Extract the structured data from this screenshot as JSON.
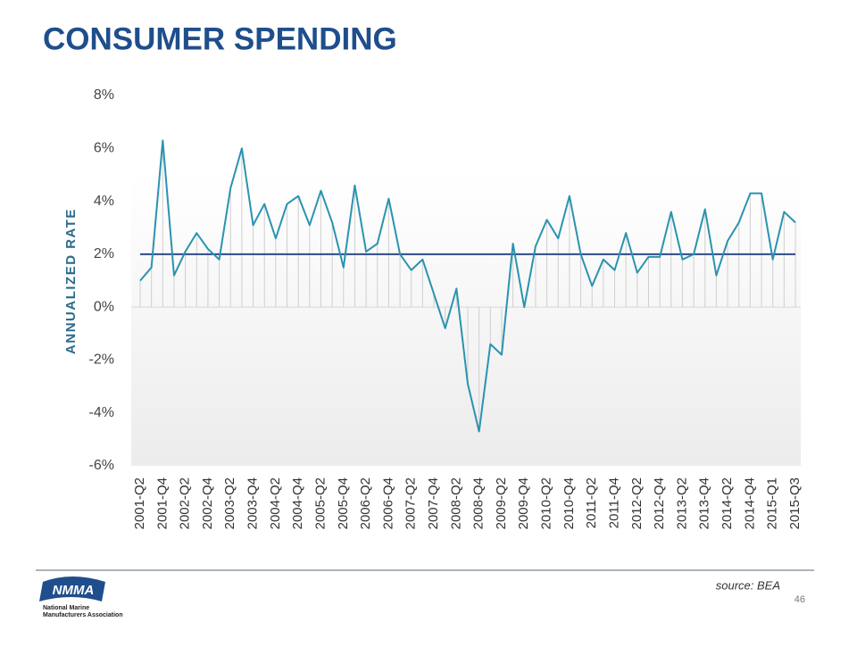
{
  "chart_data": {
    "type": "line",
    "title": "CONSUMER SPENDING",
    "y_label": "ANNUALIZED RATE",
    "source": "source: BEA",
    "page_number": "46",
    "logo": {
      "mark": "NMMA",
      "line1": "National Marine",
      "line2": "Manufacturers Association"
    },
    "categories": [
      "2001-Q2",
      null,
      "2001-Q4",
      null,
      "2002-Q2",
      null,
      "2002-Q4",
      null,
      "2003-Q2",
      null,
      "2003-Q4",
      null,
      "2004-Q2",
      null,
      "2004-Q4",
      null,
      "2005-Q2",
      null,
      "2005-Q4",
      null,
      "2006-Q2",
      null,
      "2006-Q4",
      null,
      "2007-Q2",
      null,
      "2007-Q4",
      null,
      "2008-Q2",
      null,
      "2008-Q4",
      null,
      "2009-Q2",
      null,
      "2009-Q4",
      null,
      "2010-Q2",
      null,
      "2010-Q4",
      null,
      "2011-Q2",
      null,
      "2011-Q4",
      null,
      "2012-Q2",
      null,
      "2012-Q4",
      null,
      "2013-Q2",
      null,
      "2013-Q4",
      null,
      "2014-Q2",
      null,
      "2014-Q4",
      null,
      "2015-Q1",
      null,
      "2015-Q3"
    ],
    "series": [
      {
        "color": "#2a93b0",
        "values": [
          1.0,
          1.5,
          6.3,
          1.2,
          2.1,
          2.8,
          2.2,
          1.8,
          4.5,
          6.0,
          3.1,
          3.9,
          2.6,
          3.9,
          4.2,
          3.1,
          4.4,
          3.2,
          1.5,
          4.6,
          2.1,
          2.4,
          4.1,
          2.0,
          1.4,
          1.8,
          0.5,
          -0.8,
          0.7,
          -2.9,
          -4.7,
          -1.4,
          -1.8,
          2.4,
          0.0,
          2.3,
          3.3,
          2.6,
          4.2,
          2.0,
          0.8,
          1.8,
          1.4,
          2.8,
          1.3,
          1.9,
          1.9,
          3.6,
          1.8,
          2.0,
          3.7,
          1.2,
          2.5,
          3.2,
          4.3,
          4.3,
          1.8,
          3.6,
          3.2
        ]
      }
    ],
    "reference_line": {
      "value": 2,
      "color": "#2e4a8a"
    },
    "ylim": [
      -6,
      8
    ],
    "yticks": [
      {
        "value": -6,
        "label": "-6%"
      },
      {
        "value": -4,
        "label": "-4%"
      },
      {
        "value": -2,
        "label": "-2%"
      },
      {
        "value": 0,
        "label": "0%"
      },
      {
        "value": 2,
        "label": "2%"
      },
      {
        "value": 4,
        "label": "4%"
      },
      {
        "value": 6,
        "label": "6%"
      },
      {
        "value": 8,
        "label": "8%"
      }
    ]
  }
}
